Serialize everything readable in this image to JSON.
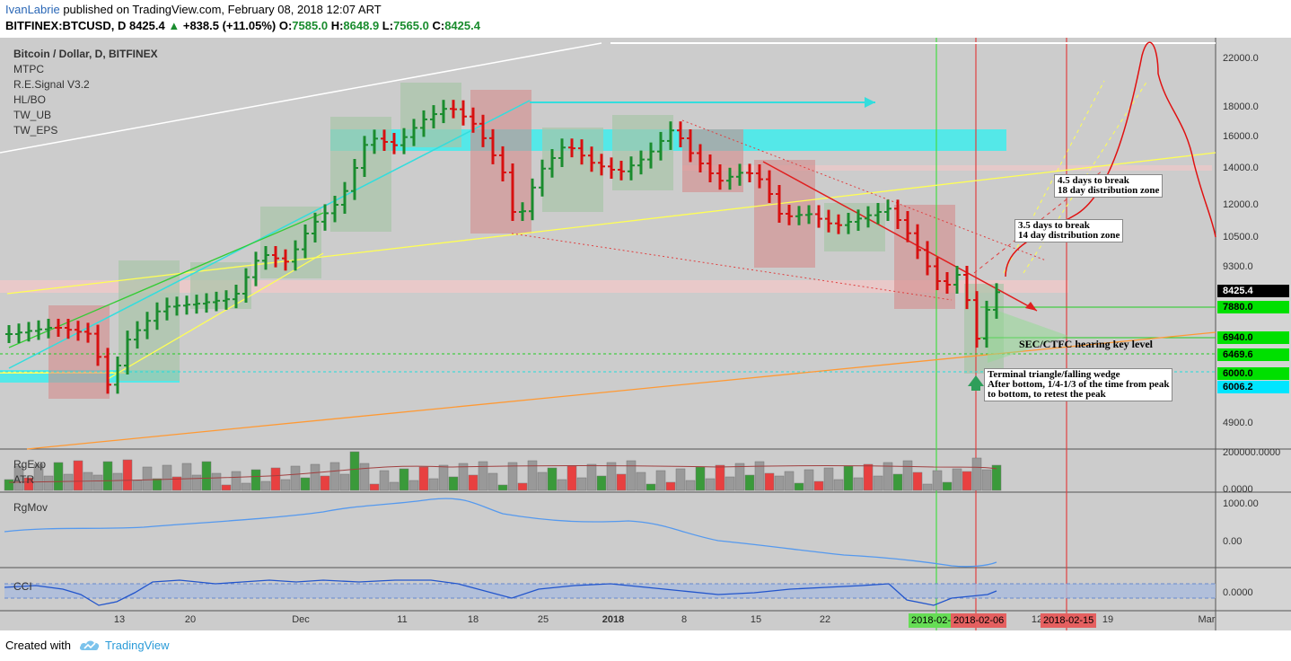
{
  "header": {
    "user": "IvanLabrie",
    "published_text": " published on TradingView.com, February 08, 2018 12:07 ART",
    "symbol_info": "BITFINEX:BTCUSD, D",
    "last": "8425.4",
    "change": "+838.5 (+11.05%)",
    "ohlc": {
      "o_label": "O:",
      "o": "7585.0",
      "h_label": "H:",
      "h": "8648.9",
      "l_label": "L:",
      "l": "7565.0",
      "c_label": "C:",
      "c": "8425.4"
    }
  },
  "legend": {
    "title": "Bitcoin / Dollar, D, BITFINEX",
    "indicators": [
      "MTPC",
      "R.E.Signal V3.2",
      "HL/BO",
      "TW_UB",
      "TW_EPS"
    ]
  },
  "price_axis": [
    "22000.0",
    "18000.0",
    "16000.0",
    "14000.0",
    "12000.0",
    "10500.0",
    "9300.0",
    "4900.0"
  ],
  "price_tags": [
    {
      "label": "8425.4",
      "bg": "#000000",
      "fg": "#ffffff"
    },
    {
      "label": "7880.0",
      "bg": "#00e000",
      "fg": "#000000"
    },
    {
      "label": "6940.0",
      "bg": "#00e000",
      "fg": "#000000"
    },
    {
      "label": "6469.6",
      "bg": "#00e000",
      "fg": "#000000"
    },
    {
      "label": "6000.0",
      "bg": "#00e000",
      "fg": "#000000"
    },
    {
      "label": "6006.2",
      "bg": "#00e5ff",
      "fg": "#000000"
    }
  ],
  "panes": {
    "volume": {
      "labels": [
        "RgExp",
        "ATR"
      ],
      "axis": [
        "200000.0000",
        "0.0000"
      ]
    },
    "rgmov": {
      "label": "RgMov",
      "axis": [
        "1000.00",
        "0.00"
      ]
    },
    "cci": {
      "label": "CCI",
      "axis": [
        "0.0000"
      ]
    }
  },
  "time_axis": [
    "13",
    "20",
    "Dec",
    "11",
    "18",
    "25",
    "2018",
    "8",
    "15",
    "22",
    "Mar",
    "19",
    "12"
  ],
  "date_tags": [
    {
      "label": "2018-02-0",
      "bg": "#66dd55"
    },
    {
      "label": "2018-02-06",
      "bg": "#e56060"
    },
    {
      "label": "2018-02-15",
      "bg": "#e56060"
    }
  ],
  "annotations": {
    "break_45_line1": "4.5 days to break",
    "break_45_line2": "18 day distribution zone",
    "break_35_line1": "3.5 days to break",
    "break_35_line2": "14 day distribution zone",
    "sec_cftc": "SEC/CTFC hearing key level",
    "wedge_line1": "Terminal triangle/falling wedge",
    "wedge_line2": "After bottom, 1/4-1/3 of the time from peak",
    "wedge_line3": "to bottom, to retest the peak"
  },
  "footer": {
    "created_with": "Created with",
    "brand": "TradingView"
  },
  "colors": {
    "up": "#1a8c2e",
    "down": "#d81010",
    "bg": "#cccccc",
    "accent": "#2a9bd8"
  }
}
